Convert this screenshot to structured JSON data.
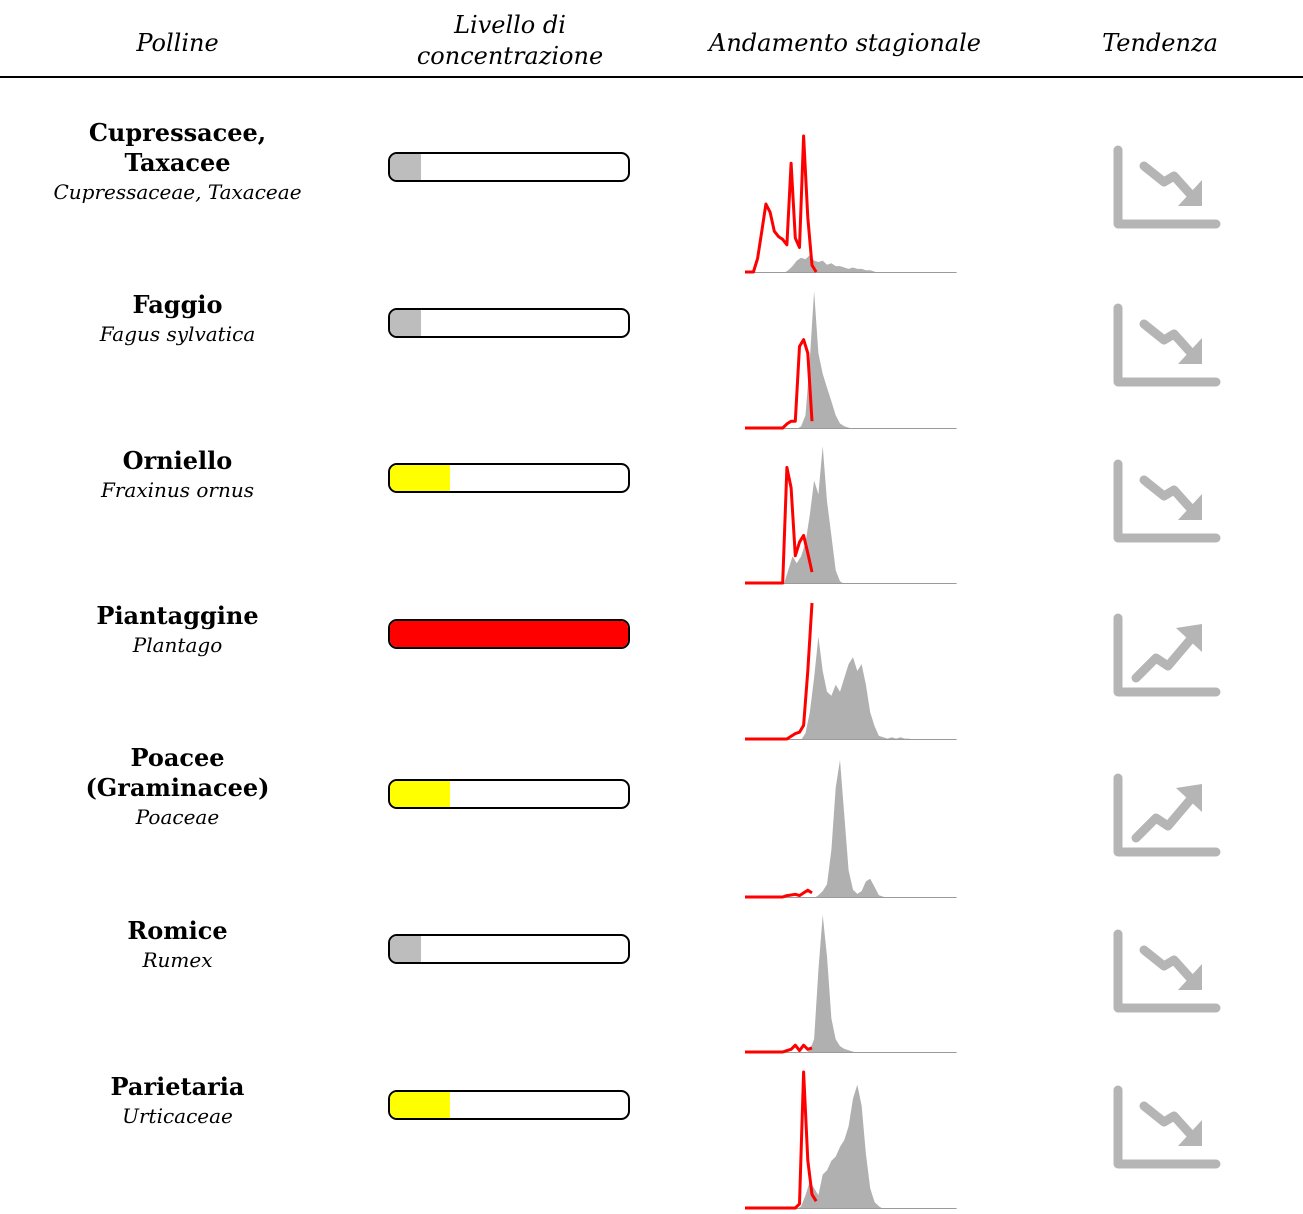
{
  "header": {
    "polline": "Polline",
    "livello_line1": "Livello di",
    "livello_line2": "concentrazione",
    "andamento": "Andamento stagionale",
    "tendenza": "Tendenza"
  },
  "colors": {
    "low": "#bdbdbd",
    "medium": "#ffff00",
    "high": "#ff0000",
    "season_fill": "#b0b0b0",
    "current_line": "#ff0000",
    "trend_icon": "#b5b5b5"
  },
  "rows": [
    {
      "name_lines": [
        "Cupressacee,",
        "Taxacee"
      ],
      "scientific": "Cupressaceae, Taxaceae",
      "level_fraction": 0.13,
      "level_color": "#bdbdbd",
      "trend": "down",
      "trend_icon": "trending-down-icon",
      "season_profile": [
        0,
        0,
        0,
        0,
        0,
        0,
        0,
        0,
        0,
        0,
        0.02,
        0.05,
        0.09,
        0.11,
        0.1,
        0.13,
        0.09,
        0.08,
        0.09,
        0.06,
        0.07,
        0.05,
        0.05,
        0.04,
        0.03,
        0.04,
        0.03,
        0.03,
        0.02,
        0.02,
        0.01,
        0,
        0,
        0,
        0,
        0,
        0,
        0,
        0,
        0,
        0,
        0,
        0,
        0,
        0,
        0,
        0,
        0,
        0,
        0
      ],
      "current_profile": [
        0,
        0,
        0,
        0.1,
        0.3,
        0.5,
        0.44,
        0.3,
        0.26,
        0.24,
        0.2,
        0.8,
        0.25,
        0.18,
        1.0,
        0.4,
        0.05,
        0
      ]
    },
    {
      "name_lines": [
        "Faggio"
      ],
      "scientific": "Fagus sylvatica",
      "level_fraction": 0.13,
      "level_color": "#bdbdbd",
      "trend": "down",
      "trend_icon": "trending-down-icon",
      "season_profile": [
        0,
        0,
        0,
        0,
        0,
        0,
        0,
        0,
        0,
        0,
        0,
        0,
        0,
        0.02,
        0.1,
        0.5,
        1.0,
        0.55,
        0.4,
        0.3,
        0.2,
        0.1,
        0.04,
        0.02,
        0.01,
        0,
        0,
        0,
        0,
        0,
        0,
        0,
        0,
        0,
        0,
        0,
        0,
        0,
        0,
        0,
        0,
        0,
        0,
        0,
        0,
        0,
        0,
        0,
        0,
        0
      ],
      "current_profile": [
        0,
        0,
        0,
        0,
        0,
        0,
        0,
        0,
        0,
        0,
        0.03,
        0.05,
        0.05,
        0.6,
        0.65,
        0.55,
        0.05
      ]
    },
    {
      "name_lines": [
        "Orniello"
      ],
      "scientific": "Fraxinus ornus",
      "level_fraction": 0.25,
      "level_color": "#ffff00",
      "trend": "down",
      "trend_icon": "trending-down-icon",
      "season_profile": [
        0,
        0,
        0,
        0,
        0,
        0,
        0,
        0,
        0,
        0,
        0.1,
        0.2,
        0.15,
        0.2,
        0.3,
        0.5,
        0.75,
        0.65,
        1.0,
        0.6,
        0.35,
        0.1,
        0.02,
        0,
        0,
        0,
        0,
        0,
        0,
        0,
        0,
        0,
        0,
        0,
        0,
        0,
        0,
        0,
        0,
        0,
        0,
        0,
        0,
        0,
        0,
        0,
        0,
        0,
        0,
        0
      ],
      "current_profile": [
        0,
        0,
        0,
        0,
        0,
        0,
        0,
        0,
        0,
        0,
        0.85,
        0.7,
        0.2,
        0.3,
        0.35,
        0.22,
        0.08
      ]
    },
    {
      "name_lines": [
        "Piantaggine"
      ],
      "scientific": "Plantago",
      "level_fraction": 1.0,
      "level_color": "#ff0000",
      "trend": "up",
      "trend_icon": "trending-up-icon",
      "season_profile": [
        0,
        0,
        0,
        0,
        0,
        0,
        0,
        0,
        0,
        0,
        0,
        0,
        0,
        0,
        0.05,
        0.2,
        0.45,
        0.75,
        0.5,
        0.35,
        0.32,
        0.4,
        0.35,
        0.45,
        0.55,
        0.6,
        0.5,
        0.55,
        0.4,
        0.2,
        0.1,
        0.03,
        0.02,
        0.01,
        0.02,
        0.01,
        0.02,
        0.01,
        0.01,
        0,
        0,
        0,
        0,
        0,
        0,
        0,
        0,
        0,
        0,
        0
      ],
      "current_profile": [
        0,
        0,
        0,
        0,
        0,
        0,
        0,
        0,
        0,
        0,
        0,
        0.02,
        0.04,
        0.05,
        0.1,
        0.5,
        1.0
      ]
    },
    {
      "name_lines": [
        "Poacee",
        "(Graminacee)"
      ],
      "scientific": "Poaceae",
      "level_fraction": 0.25,
      "level_color": "#ffff00",
      "trend": "up",
      "trend_icon": "trending-up-icon",
      "season_profile": [
        0,
        0,
        0,
        0,
        0,
        0,
        0,
        0,
        0,
        0,
        0,
        0,
        0,
        0,
        0,
        0,
        0,
        0.02,
        0.05,
        0.1,
        0.35,
        0.8,
        1.0,
        0.6,
        0.2,
        0.06,
        0.03,
        0.05,
        0.12,
        0.14,
        0.08,
        0.02,
        0.01,
        0,
        0,
        0,
        0,
        0,
        0,
        0,
        0,
        0,
        0,
        0,
        0,
        0,
        0,
        0,
        0,
        0
      ],
      "current_profile": [
        0,
        0,
        0,
        0,
        0,
        0,
        0,
        0,
        0,
        0,
        0.01,
        0.015,
        0.02,
        0.01,
        0.03,
        0.05,
        0.03
      ]
    },
    {
      "name_lines": [
        "Romice"
      ],
      "scientific": "Rumex",
      "level_fraction": 0.13,
      "level_color": "#bdbdbd",
      "trend": "down",
      "trend_icon": "trending-down-icon",
      "season_profile": [
        0,
        0,
        0,
        0,
        0,
        0,
        0,
        0,
        0,
        0,
        0,
        0,
        0,
        0,
        0,
        0.02,
        0.1,
        0.6,
        1.0,
        0.7,
        0.25,
        0.1,
        0.05,
        0.03,
        0.02,
        0.01,
        0,
        0,
        0,
        0,
        0,
        0,
        0,
        0,
        0,
        0,
        0,
        0,
        0,
        0,
        0,
        0,
        0,
        0,
        0,
        0,
        0,
        0,
        0,
        0
      ],
      "current_profile": [
        0,
        0,
        0,
        0,
        0,
        0,
        0,
        0,
        0,
        0,
        0.01,
        0.02,
        0.05,
        0.01,
        0.05,
        0.02,
        0.03
      ]
    },
    {
      "name_lines": [
        "Parietaria"
      ],
      "scientific": "Urticaceae",
      "level_fraction": 0.25,
      "level_color": "#ffff00",
      "trend": "down",
      "trend_icon": "trending-down-icon",
      "season_profile": [
        0,
        0,
        0,
        0,
        0,
        0,
        0,
        0,
        0,
        0,
        0,
        0,
        0,
        0.02,
        0.1,
        0.2,
        0.15,
        0.1,
        0.25,
        0.28,
        0.35,
        0.38,
        0.45,
        0.5,
        0.6,
        0.8,
        0.9,
        0.75,
        0.4,
        0.15,
        0.05,
        0.02,
        0,
        0,
        0,
        0,
        0,
        0,
        0,
        0,
        0,
        0,
        0,
        0,
        0,
        0,
        0,
        0,
        0,
        0
      ],
      "current_profile": [
        0,
        0,
        0,
        0,
        0,
        0,
        0,
        0,
        0,
        0,
        0,
        0,
        0,
        0.03,
        1.0,
        0.35,
        0.1,
        0.05
      ]
    }
  ],
  "chart_data": {
    "type": "table",
    "columns": [
      "Polline",
      "Livello di concentrazione",
      "Andamento stagionale",
      "Tendenza"
    ],
    "rows": [
      {
        "polline": "Cupressacee, Taxacee",
        "scientific": "Cupressaceae, Taxaceae",
        "level_fraction": 0.13,
        "level_color": "grey",
        "trend": "down"
      },
      {
        "polline": "Faggio",
        "scientific": "Fagus sylvatica",
        "level_fraction": 0.13,
        "level_color": "grey",
        "trend": "down"
      },
      {
        "polline": "Orniello",
        "scientific": "Fraxinus ornus",
        "level_fraction": 0.25,
        "level_color": "yellow",
        "trend": "down"
      },
      {
        "polline": "Piantaggine",
        "scientific": "Plantago",
        "level_fraction": 1.0,
        "level_color": "red",
        "trend": "up"
      },
      {
        "polline": "Poacee (Graminacee)",
        "scientific": "Poaceae",
        "level_fraction": 0.25,
        "level_color": "yellow",
        "trend": "up"
      },
      {
        "polline": "Romice",
        "scientific": "Rumex",
        "level_fraction": 0.13,
        "level_color": "grey",
        "trend": "down"
      },
      {
        "polline": "Parietaria",
        "scientific": "Urticaceae",
        "level_fraction": 0.25,
        "level_color": "yellow",
        "trend": "down"
      }
    ]
  }
}
